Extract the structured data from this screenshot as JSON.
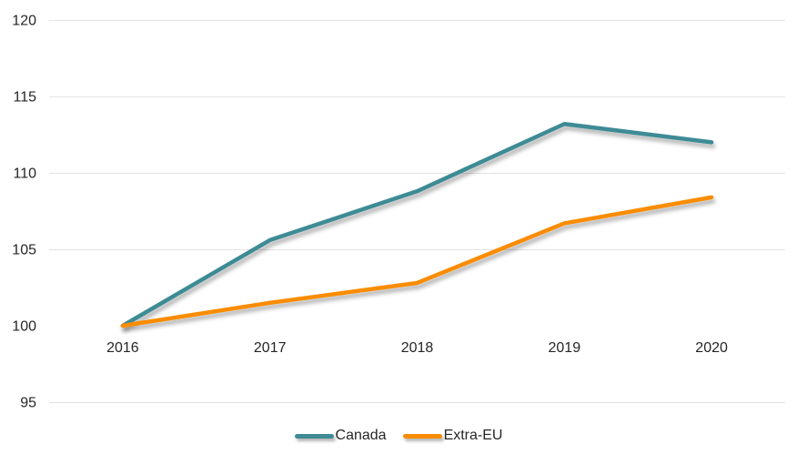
{
  "chart_data": {
    "type": "line",
    "title": "",
    "xlabel": "",
    "ylabel": "",
    "categories": [
      "2016",
      "2017",
      "2018",
      "2019",
      "2020"
    ],
    "series": [
      {
        "name": "Canada",
        "color": "#3E8B95",
        "values": [
          100,
          105.6,
          108.8,
          113.2,
          112
        ]
      },
      {
        "name": "Extra-EU",
        "color": "#FA8C00",
        "values": [
          100,
          101.5,
          102.8,
          106.7,
          108.4
        ]
      }
    ],
    "ylim": [
      95,
      120
    ],
    "y_ticks": [
      120,
      115,
      110,
      105,
      100,
      95
    ],
    "y_gridlines": [
      120,
      115,
      110,
      105,
      95
    ],
    "grid": true,
    "legend_position": "bottom-center"
  },
  "style": {
    "background": "#FFFFFF",
    "gridline_color": "#E2E2E2",
    "text_color": "#262626",
    "line_width": 4.5
  }
}
